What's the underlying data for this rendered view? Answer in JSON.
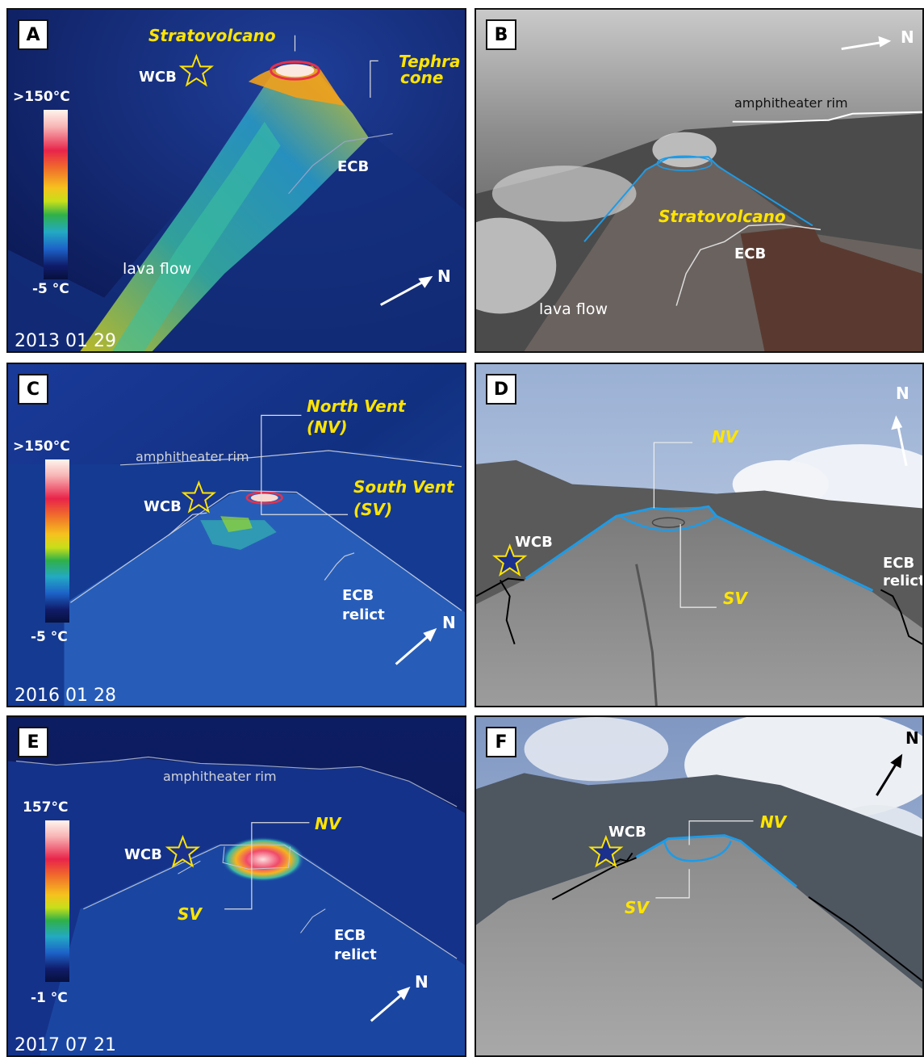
{
  "panels": {
    "A": {
      "label": "A",
      "title": "Stratovolcano",
      "tephra_1": "Tephra",
      "tephra_2": "cone",
      "wcb": "WCB",
      "ecb": "ECB",
      "lava": "lava flow",
      "north": "N",
      "scale_max": ">150°C",
      "scale_min": "-5 °C",
      "date": "2013 01 29"
    },
    "B": {
      "label": "B",
      "north": "N",
      "rim": "amphitheater rim",
      "strato": "Stratovolcano",
      "ecb": "ECB",
      "lava": "lava flow"
    },
    "C": {
      "label": "C",
      "nv_1": "North Vent",
      "nv_2": "(NV)",
      "sv_1": "South Vent",
      "sv_2": "(SV)",
      "rim": "amphitheater rim",
      "wcb": "WCB",
      "ecb_1": "ECB",
      "ecb_2": "relict",
      "north": "N",
      "scale_max": ">150°C",
      "scale_min": "-5 °C",
      "date": "2016 01 28"
    },
    "D": {
      "label": "D",
      "north": "N",
      "nv": "NV",
      "sv": "SV",
      "wcb": "WCB",
      "ecb_1": "ECB",
      "ecb_2": "relict"
    },
    "E": {
      "label": "E",
      "rim": "amphitheater rim",
      "nv": "NV",
      "sv": "SV",
      "wcb": "WCB",
      "ecb_1": "ECB",
      "ecb_2": "relict",
      "north": "N",
      "scale_max": "157°C",
      "scale_min": "-1 °C",
      "date": "2017 07 21"
    },
    "F": {
      "label": "F",
      "north": "N",
      "wcb": "WCB",
      "nv": "NV",
      "sv": "SV"
    }
  },
  "colors": {
    "thermal_dark": "#0a1a5c",
    "vent_outline": "#1e9be6",
    "annotation_yellow": "#ffe400",
    "star_fill": "#1b2f8c",
    "star_stroke": "#ffe400"
  }
}
